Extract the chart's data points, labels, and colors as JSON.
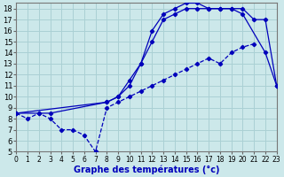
{
  "xlabel": "Graphe des températures (°c)",
  "bg_color": "#cce8ea",
  "line_color": "#0000bb",
  "grid_color": "#aad0d4",
  "xlim": [
    0,
    23
  ],
  "ylim": [
    5,
    18.5
  ],
  "xticks": [
    0,
    1,
    2,
    3,
    4,
    5,
    6,
    7,
    8,
    9,
    10,
    11,
    12,
    13,
    14,
    15,
    16,
    17,
    18,
    19,
    20,
    21,
    22,
    23
  ],
  "yticks": [
    5,
    6,
    7,
    8,
    9,
    10,
    11,
    12,
    13,
    14,
    15,
    16,
    17,
    18
  ],
  "curve_dashed": {
    "x": [
      0,
      1,
      2,
      3,
      4,
      5,
      6,
      7,
      8,
      9,
      10,
      11,
      12,
      13,
      14,
      15,
      16,
      17,
      18,
      19,
      20,
      21,
      22,
      23
    ],
    "y": [
      8.5,
      8,
      8.5,
      8,
      7,
      7,
      6.5,
      5,
      9,
      9.5,
      10,
      10.5,
      11,
      11.5,
      12,
      12.5,
      13,
      13.5,
      13,
      14,
      14.5,
      14.8,
      null,
      11
    ]
  },
  "curve_mid": {
    "x": [
      0,
      2,
      3,
      8,
      9,
      10,
      11,
      12,
      13,
      14,
      15,
      16,
      17,
      18,
      19,
      20,
      22,
      23
    ],
    "y": [
      8.5,
      8.5,
      8.5,
      9.5,
      10,
      11.5,
      13,
      15,
      17,
      17.5,
      18,
      18,
      18,
      18,
      18,
      17.5,
      14,
      11
    ]
  },
  "curve_top": {
    "x": [
      0,
      8,
      9,
      10,
      11,
      12,
      13,
      14,
      15,
      16,
      17,
      18,
      19,
      20,
      21,
      22,
      23
    ],
    "y": [
      8.5,
      9.5,
      10,
      11,
      13,
      16,
      17.5,
      18,
      18.5,
      18.5,
      18,
      18,
      18,
      18,
      17,
      17,
      11
    ]
  }
}
